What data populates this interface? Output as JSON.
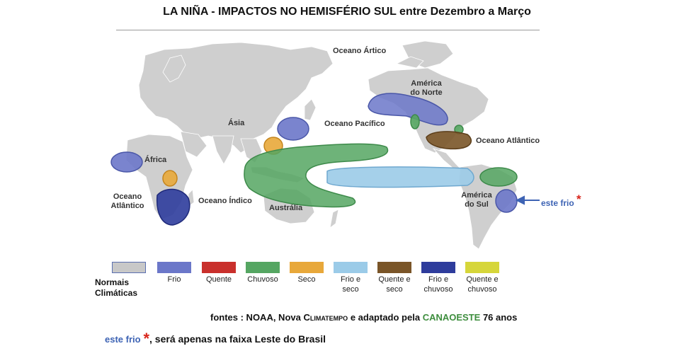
{
  "title": "LA NIÑA - IMPACTOS NO HEMISFÉRIO SUL entre Dezembro a Março",
  "labels": {
    "ocean_arctic": "Oceano Ártico",
    "ocean_pacific": "Oceano Pacífico",
    "ocean_atlantic_north": "Oceano Atlântico",
    "ocean_atlantic_south": "Oceano Atlântico",
    "ocean_indian": "Oceano Índico",
    "asia": "Ásia",
    "africa": "África",
    "australia": "Austrália",
    "north_america": "América do Norte",
    "south_america": "América do Sul"
  },
  "annotation": {
    "text": "este frio",
    "star": "*"
  },
  "legend": [
    {
      "label": "Normais Climáticas",
      "color": "#c8c8c8"
    },
    {
      "label": "Frio",
      "color": "#6b77c9"
    },
    {
      "label": "Quente",
      "color": "#c9302c"
    },
    {
      "label": "Chuvoso",
      "color": "#55a662"
    },
    {
      "label": "Seco",
      "color": "#e8a83a"
    },
    {
      "label": "Frio e seco",
      "color": "#9bcbe8"
    },
    {
      "label": "Quente e seco",
      "color": "#7a5528"
    },
    {
      "label": "Frio e chuvoso",
      "color": "#2e3c9c"
    },
    {
      "label": "Quente e chuvoso",
      "color": "#d6d63a"
    }
  ],
  "credits": {
    "prefix": "fontes : NOAA, Nova",
    "climatempo": "Climatempo",
    "middle": "e adaptado pela",
    "org": "CANAOESTE",
    "suffix": "76 anos"
  },
  "footer": {
    "highlight": "este frio",
    "star": "*",
    "rest": ", será apenas na faixa Leste do Brasil"
  }
}
